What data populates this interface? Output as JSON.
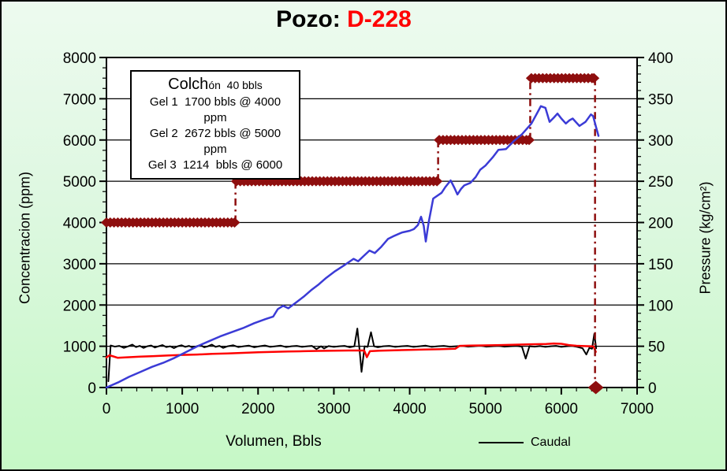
{
  "title": {
    "prefix": "Pozo: ",
    "well": "D-228"
  },
  "colors": {
    "background_top": "#edfaef",
    "background_bottom": "#c6f8c6",
    "well_red": "#ff0000",
    "diamond_dark_red": "#8e0e0e",
    "pressure_blue": "#3b3bd6",
    "caudal_black": "#000000",
    "red_series": "#ff0000",
    "plot_background": "#ffffff"
  },
  "chart_data": {
    "type": "line",
    "title": "Pozo: D-228",
    "grid": "horizontal-only",
    "x_axis": {
      "label": "Volumen, Bbls",
      "min": 0,
      "max": 7000,
      "major_ticks": [
        0,
        1000,
        2000,
        3000,
        4000,
        5000,
        6000,
        7000
      ],
      "minor_step": 200
    },
    "y_left": {
      "label": "Concentracion (ppm)",
      "min": 0,
      "max": 8000,
      "major_ticks": [
        0,
        1000,
        2000,
        3000,
        4000,
        5000,
        6000,
        7000,
        8000
      ],
      "minor_step": 250,
      "gridlines": [
        1000,
        2000,
        3000,
        4000,
        5000,
        6000,
        7000
      ]
    },
    "y_right": {
      "label": "Pressure (kg/cm²)",
      "min": 0,
      "max": 400,
      "major_ticks": [
        0,
        50,
        100,
        150,
        200,
        250,
        300,
        350,
        400
      ],
      "minor_step": 10
    },
    "annotation_box": {
      "title_large": "Colch",
      "title_small": "ón  40 bbls",
      "lines": [
        "Gel 1  1700 bbls @ 4000 ppm",
        "Gel 2  2672 bbls @ 5000 ppm",
        "Gel 3  1214  bbls @ 6000"
      ]
    },
    "legend": {
      "position": "bottom",
      "items": [
        {
          "label": "Caudal",
          "color": "#000000",
          "style": "line"
        }
      ]
    },
    "series": [
      {
        "name": "concentracion-programada",
        "axis": "left",
        "style": "diamond-step",
        "color": "#8e0e0e",
        "segments": [
          {
            "y": 4000,
            "x1": 0,
            "x2": 1690
          },
          {
            "y": 5000,
            "x1": 1715,
            "x2": 4360
          },
          {
            "y": 6000,
            "x1": 4390,
            "x2": 5575
          },
          {
            "y": 7500,
            "x1": 5605,
            "x2": 6430
          }
        ],
        "connectors": [
          {
            "x": 1702,
            "y1": 4000,
            "y2": 5000
          },
          {
            "x": 4375,
            "y1": 5000,
            "y2": 6000
          },
          {
            "x": 5590,
            "y1": 6000,
            "y2": 7500
          },
          {
            "x": 6445,
            "y1": 7500,
            "y2": 0
          }
        ],
        "end_point": {
          "x": 6455,
          "y": 0
        }
      },
      {
        "name": "caudal",
        "axis": "left",
        "style": "line",
        "color": "#000000",
        "width": 2,
        "points": [
          [
            25,
            150
          ],
          [
            55,
            1020
          ],
          [
            110,
            990
          ],
          [
            170,
            1010
          ],
          [
            230,
            960
          ],
          [
            290,
            1000
          ],
          [
            340,
            1040
          ],
          [
            390,
            980
          ],
          [
            440,
            1010
          ],
          [
            490,
            960
          ],
          [
            540,
            1000
          ],
          [
            590,
            1020
          ],
          [
            640,
            970
          ],
          [
            690,
            1000
          ],
          [
            740,
            1030
          ],
          [
            790,
            980
          ],
          [
            840,
            1000
          ],
          [
            890,
            955
          ],
          [
            940,
            1000
          ],
          [
            990,
            1025
          ],
          [
            1040,
            985
          ],
          [
            1090,
            1010
          ],
          [
            1140,
            965
          ],
          [
            1190,
            1000
          ],
          [
            1240,
            1030
          ],
          [
            1290,
            975
          ],
          [
            1340,
            1000
          ],
          [
            1390,
            1040
          ],
          [
            1440,
            985
          ],
          [
            1490,
            1010
          ],
          [
            1540,
            960
          ],
          [
            1600,
            1000
          ],
          [
            1670,
            1025
          ],
          [
            1740,
            980
          ],
          [
            1810,
            1000
          ],
          [
            1880,
            1015
          ],
          [
            1950,
            975
          ],
          [
            2020,
            1000
          ],
          [
            2090,
            1020
          ],
          [
            2160,
            985
          ],
          [
            2230,
            1000
          ],
          [
            2300,
            1015
          ],
          [
            2370,
            980
          ],
          [
            2440,
            1000
          ],
          [
            2510,
            1010
          ],
          [
            2580,
            985
          ],
          [
            2650,
            1000
          ],
          [
            2710,
            1010
          ],
          [
            2770,
            930
          ],
          [
            2830,
            1000
          ],
          [
            2870,
            945
          ],
          [
            2930,
            1005
          ],
          [
            3000,
            985
          ],
          [
            3070,
            1000
          ],
          [
            3140,
            1010
          ],
          [
            3210,
            975
          ],
          [
            3270,
            1000
          ],
          [
            3310,
            1430
          ],
          [
            3340,
            900
          ],
          [
            3365,
            380
          ],
          [
            3405,
            1000
          ],
          [
            3445,
            985
          ],
          [
            3490,
            1340
          ],
          [
            3530,
            1000
          ],
          [
            3580,
            975
          ],
          [
            3650,
            1000
          ],
          [
            3730,
            1010
          ],
          [
            3810,
            985
          ],
          [
            3890,
            1000
          ],
          [
            3970,
            1010
          ],
          [
            4050,
            985
          ],
          [
            4130,
            1000
          ],
          [
            4210,
            1015
          ],
          [
            4290,
            985
          ],
          [
            4370,
            1000
          ],
          [
            4450,
            1010
          ],
          [
            4530,
            990
          ],
          [
            4610,
            1000
          ],
          [
            4690,
            1010
          ],
          [
            4770,
            990
          ],
          [
            4850,
            1000
          ],
          [
            4930,
            1015
          ],
          [
            5010,
            990
          ],
          [
            5090,
            1000
          ],
          [
            5170,
            1010
          ],
          [
            5250,
            990
          ],
          [
            5330,
            1000
          ],
          [
            5410,
            1010
          ],
          [
            5480,
            990
          ],
          [
            5530,
            700
          ],
          [
            5580,
            1000
          ],
          [
            5650,
            990
          ],
          [
            5720,
            1005
          ],
          [
            5790,
            985
          ],
          [
            5860,
            1000
          ],
          [
            5930,
            1010
          ],
          [
            6000,
            985
          ],
          [
            6070,
            1000
          ],
          [
            6140,
            1010
          ],
          [
            6210,
            985
          ],
          [
            6280,
            950
          ],
          [
            6330,
            800
          ],
          [
            6370,
            960
          ],
          [
            6405,
            940
          ],
          [
            6435,
            1300
          ],
          [
            6460,
            950
          ]
        ]
      },
      {
        "name": "red-series",
        "axis": "left",
        "style": "line",
        "color": "#ff0000",
        "width": 2.5,
        "points": [
          [
            0,
            730
          ],
          [
            40,
            780
          ],
          [
            90,
            755
          ],
          [
            150,
            720
          ],
          [
            250,
            730
          ],
          [
            350,
            740
          ],
          [
            450,
            750
          ],
          [
            600,
            760
          ],
          [
            800,
            775
          ],
          [
            1000,
            790
          ],
          [
            1200,
            800
          ],
          [
            1400,
            815
          ],
          [
            1600,
            825
          ],
          [
            1800,
            840
          ],
          [
            2000,
            855
          ],
          [
            2200,
            865
          ],
          [
            2400,
            872
          ],
          [
            2600,
            880
          ],
          [
            2800,
            888
          ],
          [
            3000,
            893
          ],
          [
            3200,
            897
          ],
          [
            3400,
            897
          ],
          [
            3435,
            735
          ],
          [
            3475,
            880
          ],
          [
            3600,
            893
          ],
          [
            3800,
            903
          ],
          [
            4000,
            913
          ],
          [
            4200,
            920
          ],
          [
            4400,
            928
          ],
          [
            4600,
            940
          ],
          [
            4660,
            1010
          ],
          [
            4800,
            1015
          ],
          [
            5000,
            1022
          ],
          [
            5200,
            1030
          ],
          [
            5400,
            1038
          ],
          [
            5600,
            1048
          ],
          [
            5800,
            1055
          ],
          [
            5900,
            1068
          ],
          [
            6000,
            1060
          ],
          [
            6100,
            1030
          ],
          [
            6200,
            1012
          ],
          [
            6300,
            1005
          ],
          [
            6380,
            1000
          ],
          [
            6425,
            995
          ],
          [
            6455,
            865
          ]
        ]
      },
      {
        "name": "pressure",
        "axis": "right",
        "style": "line",
        "color": "#3b3bd6",
        "width": 2.5,
        "points": [
          [
            0,
            0
          ],
          [
            150,
            6
          ],
          [
            300,
            13
          ],
          [
            450,
            19
          ],
          [
            600,
            25
          ],
          [
            750,
            30
          ],
          [
            900,
            36
          ],
          [
            1050,
            43
          ],
          [
            1200,
            50
          ],
          [
            1350,
            56
          ],
          [
            1500,
            62
          ],
          [
            1650,
            67
          ],
          [
            1800,
            72
          ],
          [
            1950,
            78
          ],
          [
            2100,
            83
          ],
          [
            2200,
            86
          ],
          [
            2260,
            95
          ],
          [
            2330,
            99
          ],
          [
            2400,
            96
          ],
          [
            2500,
            103
          ],
          [
            2600,
            110
          ],
          [
            2700,
            118
          ],
          [
            2800,
            125
          ],
          [
            2900,
            133
          ],
          [
            3016,
            141
          ],
          [
            3150,
            149
          ],
          [
            3260,
            156
          ],
          [
            3320,
            153
          ],
          [
            3400,
            160
          ],
          [
            3470,
            166
          ],
          [
            3540,
            163
          ],
          [
            3620,
            170
          ],
          [
            3713,
            180
          ],
          [
            3800,
            184
          ],
          [
            3900,
            188
          ],
          [
            4000,
            190
          ],
          [
            4055,
            192
          ],
          [
            4110,
            197
          ],
          [
            4150,
            207
          ],
          [
            4185,
            196
          ],
          [
            4212,
            177
          ],
          [
            4250,
            200
          ],
          [
            4310,
            229
          ],
          [
            4420,
            236
          ],
          [
            4470,
            243
          ],
          [
            4540,
            251
          ],
          [
            4590,
            242
          ],
          [
            4630,
            234
          ],
          [
            4680,
            241
          ],
          [
            4720,
            245
          ],
          [
            4800,
            248
          ],
          [
            4870,
            255
          ],
          [
            4930,
            264
          ],
          [
            5000,
            269
          ],
          [
            5096,
            279
          ],
          [
            5170,
            288
          ],
          [
            5270,
            289
          ],
          [
            5377,
            299
          ],
          [
            5481,
            307
          ],
          [
            5606,
            320
          ],
          [
            5689,
            334
          ],
          [
            5730,
            341
          ],
          [
            5790,
            339
          ],
          [
            5845,
            322
          ],
          [
            5900,
            327
          ],
          [
            5950,
            332
          ],
          [
            6000,
            326
          ],
          [
            6060,
            320
          ],
          [
            6110,
            324
          ],
          [
            6150,
            326
          ],
          [
            6200,
            321
          ],
          [
            6240,
            317
          ],
          [
            6320,
            322
          ],
          [
            6390,
            331
          ],
          [
            6420,
            329
          ],
          [
            6460,
            315
          ],
          [
            6490,
            305
          ]
        ]
      }
    ]
  }
}
